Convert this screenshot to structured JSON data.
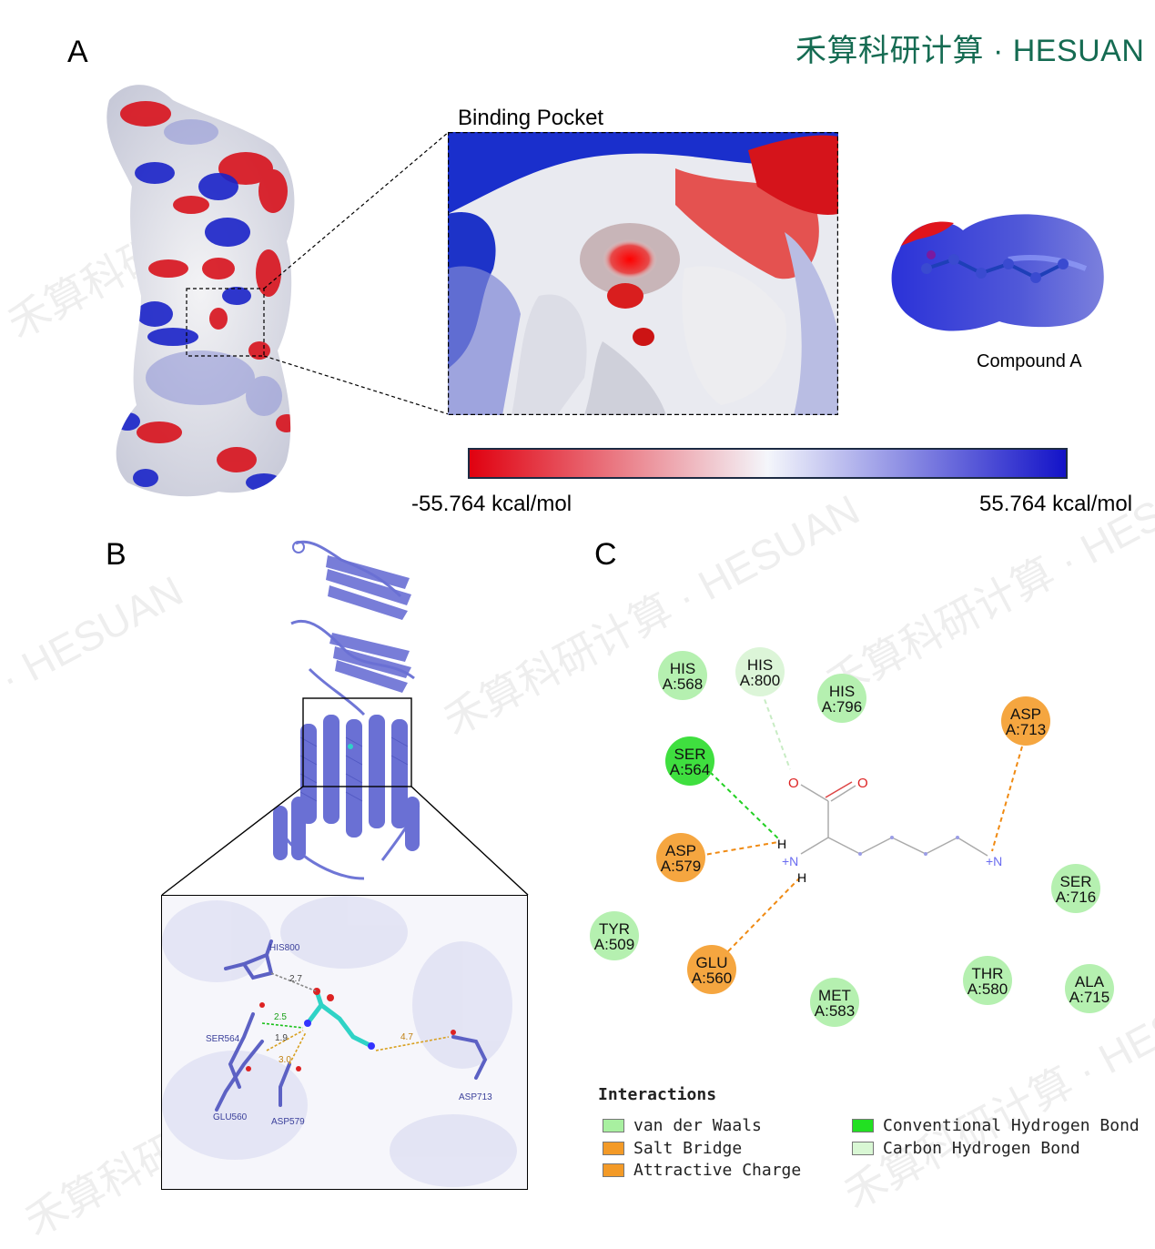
{
  "brand": "禾算科研计算 · HESUAN",
  "watermark": [
    "· HESUAN",
    "禾算科研",
    "禾算科研计算 · HESUAN"
  ],
  "panels": {
    "a": {
      "letter": "A",
      "pocket_title": "Binding Pocket",
      "compound_label": "Compound A",
      "colorbar": {
        "min_label": "-55.764 kcal/mol",
        "max_label": "55.764 kcal/mol",
        "colors": [
          "#e0000f",
          "#f4f6fb",
          "#1212c8"
        ]
      }
    },
    "b": {
      "letter": "B",
      "residue_labels": [
        "HIS800",
        "SER564",
        "GLU560",
        "ASP579",
        "ASP713"
      ],
      "distances": [
        "2.7",
        "2.5",
        "1.9",
        "3.0",
        "4.7"
      ]
    },
    "c": {
      "letter": "C",
      "residues": [
        {
          "name": "HIS",
          "id": "A:568",
          "type": "vdw"
        },
        {
          "name": "HIS",
          "id": "A:800",
          "type": "carbon_hb"
        },
        {
          "name": "HIS",
          "id": "A:796",
          "type": "vdw"
        },
        {
          "name": "ASP",
          "id": "A:713",
          "type": "salt"
        },
        {
          "name": "SER",
          "id": "A:564",
          "type": "conv_hb"
        },
        {
          "name": "ASP",
          "id": "A:579",
          "type": "salt"
        },
        {
          "name": "SER",
          "id": "A:716",
          "type": "vdw"
        },
        {
          "name": "TYR",
          "id": "A:509",
          "type": "vdw"
        },
        {
          "name": "GLU",
          "id": "A:560",
          "type": "salt"
        },
        {
          "name": "MET",
          "id": "A:583",
          "type": "vdw"
        },
        {
          "name": "THR",
          "id": "A:580",
          "type": "vdw"
        },
        {
          "name": "ALA",
          "id": "A:715",
          "type": "vdw"
        }
      ],
      "atoms": {
        "o1": "O",
        "o2": "O",
        "h1": "H",
        "h2": "H",
        "n1": "+N",
        "n2": "+N"
      },
      "legend": {
        "title": "Interactions",
        "items": [
          {
            "label": "van der Waals",
            "color": "#a8f0a0"
          },
          {
            "label": "Salt Bridge",
            "color": "#f39a27"
          },
          {
            "label": "Attractive Charge",
            "color": "#f39a27"
          },
          {
            "label": "Conventional Hydrogen Bond",
            "color": "#22e022"
          },
          {
            "label": "Carbon Hydrogen Bond",
            "color": "#d9f7d4"
          }
        ]
      }
    }
  },
  "colors": {
    "vdw": "#b5f0b0",
    "salt": "#f5a640",
    "conv_hb": "#3fdf3f",
    "carbon_hb": "#dcf5d8",
    "ribbon": "#6f76d6"
  }
}
